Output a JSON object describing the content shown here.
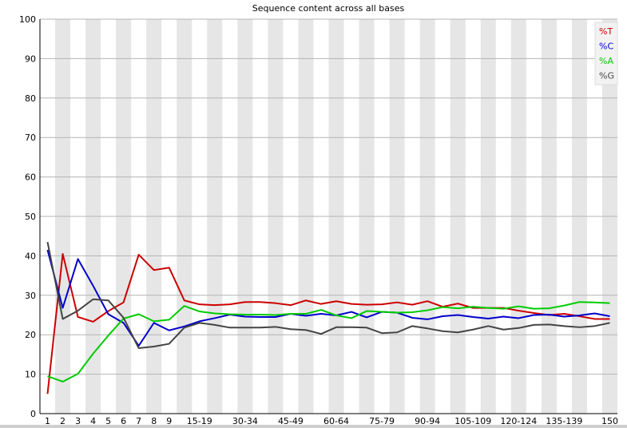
{
  "chart_data": {
    "type": "line",
    "title": "Sequence content across all bases",
    "xlabel": "",
    "ylabel": "",
    "ylim": [
      0,
      100
    ],
    "yticks": [
      0,
      10,
      20,
      30,
      40,
      50,
      60,
      70,
      80,
      90,
      100
    ],
    "grid": true,
    "legend_position": "top-right",
    "categories": [
      "1",
      "2",
      "3",
      "4",
      "5",
      "6",
      "7",
      "8",
      "9",
      "10-14",
      "15-19",
      "20-24",
      "25-29",
      "30-34",
      "35-39",
      "40-44",
      "45-49",
      "50-54",
      "55-59",
      "60-64",
      "65-69",
      "70-74",
      "75-79",
      "80-84",
      "85-89",
      "90-94",
      "95-99",
      "100-104",
      "105-109",
      "110-114",
      "115-119",
      "120-124",
      "125-129",
      "130-134",
      "135-139",
      "140-144",
      "145-149",
      "150"
    ],
    "xtick_labels": [
      "1",
      "2",
      "3",
      "4",
      "5",
      "6",
      "7",
      "8",
      "9",
      "15-19",
      "30-34",
      "45-49",
      "60-64",
      "75-79",
      "90-94",
      "105-109",
      "120-124",
      "135-139",
      "150"
    ],
    "series": [
      {
        "name": "%T",
        "color": "#cc0000",
        "values": [
          5,
          40.5,
          24.5,
          23.3,
          26,
          28.2,
          40.3,
          36.4,
          37,
          28.7,
          27.7,
          27.5,
          27.7,
          28.3,
          28.3,
          28,
          27.5,
          28.7,
          27.8,
          28.5,
          27.8,
          27.6,
          27.7,
          28.2,
          27.6,
          28.5,
          27.1,
          27.9,
          26.8,
          26.8,
          26.8,
          26.1,
          25.5,
          25,
          25.3,
          24.7,
          24,
          24
        ]
      },
      {
        "name": "%C",
        "color": "#0000cc",
        "values": [
          41.5,
          26.8,
          39.2,
          32.4,
          25.2,
          23,
          17.2,
          23,
          21.1,
          22.1,
          23.4,
          24.2,
          25.1,
          24.6,
          24.5,
          24.5,
          25.3,
          24.8,
          25.3,
          24.9,
          25.8,
          24.4,
          25.8,
          25.6,
          24.3,
          23.9,
          24.7,
          25,
          24.5,
          24.1,
          24.6,
          24.2,
          25,
          25.1,
          24.6,
          24.9,
          25.4,
          24.7
        ]
      },
      {
        "name": "%A",
        "color": "#00cc00",
        "values": [
          9.5,
          8.1,
          10.1,
          15.2,
          19.8,
          24.1,
          25.2,
          23.4,
          23.8,
          27.3,
          25.9,
          25.4,
          25.2,
          25.1,
          25.1,
          25,
          25.3,
          25.3,
          26.3,
          24.9,
          24.2,
          26,
          25.8,
          25.6,
          25.7,
          26.2,
          27,
          26.7,
          27.1,
          26.8,
          26.6,
          27.2,
          26.6,
          26.7,
          27.4,
          28.3,
          28.2,
          28
        ]
      },
      {
        "name": "%G",
        "color": "#444444",
        "values": [
          43.5,
          24,
          26.1,
          29,
          28.7,
          24.3,
          16.6,
          17,
          17.7,
          21.8,
          23,
          22.5,
          21.8,
          21.8,
          21.8,
          22,
          21.4,
          21.2,
          20.2,
          21.9,
          21.9,
          21.8,
          20.4,
          20.6,
          22.2,
          21.6,
          20.9,
          20.6,
          21.3,
          22.2,
          21.3,
          21.7,
          22.5,
          22.6,
          22.2,
          21.9,
          22.2,
          23
        ]
      }
    ]
  }
}
